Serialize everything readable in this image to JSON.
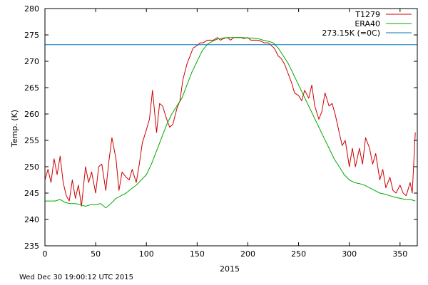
{
  "footer": {
    "timestamp": "Wed Dec 30 19:00:12 UTC 2015"
  },
  "chart_data": {
    "type": "line",
    "title": "",
    "xlabel": "2015",
    "ylabel": "Temp. (K)",
    "xlim": [
      0,
      367
    ],
    "ylim": [
      235,
      280
    ],
    "xticks": [
      0,
      50,
      100,
      150,
      200,
      250,
      300,
      350
    ],
    "yticks": [
      235,
      240,
      245,
      250,
      255,
      260,
      265,
      270,
      275,
      280
    ],
    "grid": false,
    "legend_position": "top-right",
    "series": [
      {
        "name": "T1279",
        "color": "#cc0000",
        "x": [
          0,
          3,
          6,
          9,
          12,
          15,
          18,
          21,
          24,
          27,
          30,
          33,
          36,
          40,
          43,
          46,
          50,
          53,
          56,
          60,
          63,
          66,
          70,
          73,
          76,
          80,
          83,
          86,
          90,
          93,
          96,
          100,
          103,
          106,
          110,
          113,
          116,
          120,
          123,
          126,
          130,
          133,
          136,
          140,
          143,
          146,
          150,
          153,
          156,
          160,
          163,
          166,
          170,
          173,
          176,
          180,
          183,
          186,
          190,
          193,
          196,
          200,
          203,
          206,
          210,
          213,
          216,
          220,
          223,
          226,
          230,
          233,
          236,
          240,
          243,
          246,
          250,
          253,
          256,
          260,
          263,
          266,
          270,
          273,
          276,
          280,
          283,
          286,
          290,
          293,
          296,
          300,
          303,
          306,
          310,
          313,
          316,
          320,
          323,
          326,
          330,
          333,
          336,
          340,
          343,
          346,
          350,
          353,
          356,
          360,
          362,
          365
        ],
        "values": [
          247.5,
          249.5,
          247.0,
          251.5,
          248.5,
          252.0,
          247.0,
          244.5,
          243.5,
          247.5,
          244.0,
          246.5,
          242.5,
          250.0,
          247.0,
          249.0,
          245.0,
          250.0,
          250.5,
          245.5,
          251.0,
          255.5,
          251.5,
          245.5,
          249.0,
          248.0,
          247.5,
          249.5,
          247.0,
          250.5,
          254.5,
          257.0,
          259.0,
          264.5,
          256.5,
          262.0,
          261.5,
          259.0,
          257.5,
          258.0,
          261.0,
          262.5,
          266.5,
          269.5,
          271.0,
          272.5,
          273.0,
          273.5,
          273.5,
          274.0,
          274.0,
          274.0,
          274.5,
          274.0,
          274.3,
          274.5,
          274.0,
          274.5,
          274.5,
          274.5,
          274.3,
          274.5,
          274.0,
          274.0,
          274.0,
          273.8,
          273.5,
          273.5,
          273.0,
          272.5,
          271.0,
          270.5,
          269.5,
          267.5,
          266.0,
          264.0,
          263.5,
          262.5,
          264.5,
          263.0,
          265.5,
          261.5,
          259.0,
          260.5,
          264.0,
          261.5,
          262.0,
          260.0,
          256.5,
          254.0,
          255.0,
          250.0,
          253.5,
          250.0,
          253.5,
          250.5,
          255.5,
          253.5,
          250.5,
          252.5,
          247.5,
          249.5,
          246.0,
          248.0,
          245.5,
          245.0,
          246.5,
          245.0,
          244.5,
          247.0,
          245.0,
          256.5
        ]
      },
      {
        "name": "ERA40",
        "color": "#00aa00",
        "x": [
          0,
          5,
          10,
          15,
          20,
          25,
          30,
          35,
          40,
          45,
          50,
          55,
          60,
          65,
          70,
          75,
          80,
          85,
          90,
          95,
          100,
          105,
          110,
          115,
          120,
          125,
          130,
          135,
          140,
          145,
          150,
          155,
          160,
          165,
          170,
          175,
          180,
          185,
          190,
          195,
          200,
          205,
          210,
          215,
          220,
          225,
          230,
          235,
          240,
          245,
          250,
          255,
          260,
          265,
          270,
          275,
          280,
          285,
          290,
          295,
          300,
          305,
          310,
          315,
          320,
          325,
          330,
          335,
          340,
          345,
          350,
          355,
          360,
          365
        ],
        "values": [
          243.5,
          243.5,
          243.5,
          243.8,
          243.2,
          243.0,
          243.0,
          242.8,
          242.5,
          242.8,
          242.8,
          243.0,
          242.2,
          243.0,
          244.0,
          244.5,
          245.0,
          245.8,
          246.5,
          247.5,
          248.5,
          250.5,
          253.0,
          255.5,
          258.0,
          260.0,
          261.5,
          263.0,
          265.5,
          268.0,
          270.0,
          272.0,
          273.2,
          273.8,
          274.2,
          274.4,
          274.5,
          274.5,
          274.5,
          274.5,
          274.4,
          274.4,
          274.3,
          274.0,
          273.8,
          273.5,
          272.5,
          271.0,
          269.5,
          267.5,
          265.5,
          263.5,
          261.5,
          259.5,
          257.5,
          255.5,
          253.5,
          251.5,
          250.0,
          248.5,
          247.5,
          247.0,
          246.8,
          246.5,
          246.0,
          245.5,
          245.0,
          244.8,
          244.5,
          244.2,
          244.0,
          243.8,
          243.8,
          243.5
        ]
      },
      {
        "name": "273.15K (=0C)",
        "color": "#0077bb",
        "type": "hline",
        "value": 273.15
      }
    ]
  }
}
